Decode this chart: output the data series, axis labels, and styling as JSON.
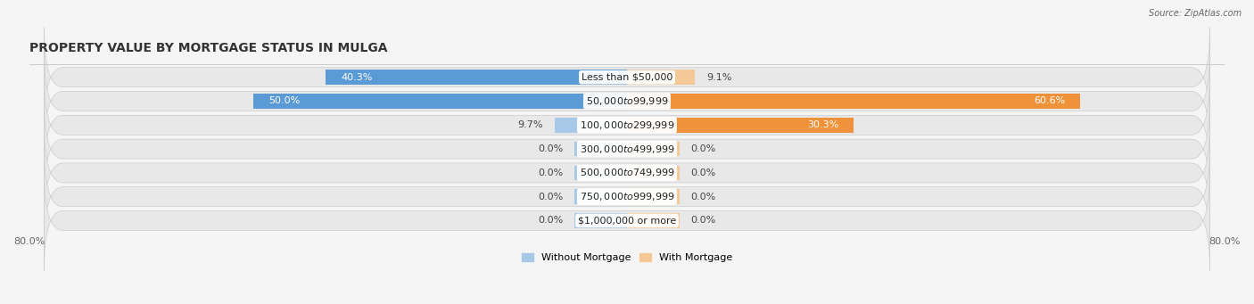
{
  "title": "PROPERTY VALUE BY MORTGAGE STATUS IN MULGA",
  "source": "Source: ZipAtlas.com",
  "categories": [
    "Less than $50,000",
    "$50,000 to $99,999",
    "$100,000 to $299,999",
    "$300,000 to $499,999",
    "$500,000 to $749,999",
    "$750,000 to $999,999",
    "$1,000,000 or more"
  ],
  "without_mortgage": [
    40.3,
    50.0,
    9.7,
    0.0,
    0.0,
    0.0,
    0.0
  ],
  "with_mortgage": [
    9.1,
    60.6,
    30.3,
    0.0,
    0.0,
    0.0,
    0.0
  ],
  "color_without_strong": "#5b9bd5",
  "color_without_light": "#a8c8e8",
  "color_with_strong": "#f0923a",
  "color_with_light": "#f5c897",
  "xlim_left": -80,
  "xlim_right": 80,
  "zero_bar_width": 7.0,
  "row_bg_color": "#e8e8e8",
  "fig_bg_color": "#f5f5f5",
  "title_fontsize": 10,
  "label_fontsize": 8,
  "category_fontsize": 8,
  "axis_fontsize": 8,
  "legend_label_without": "Without Mortgage",
  "legend_label_with": "With Mortgage"
}
